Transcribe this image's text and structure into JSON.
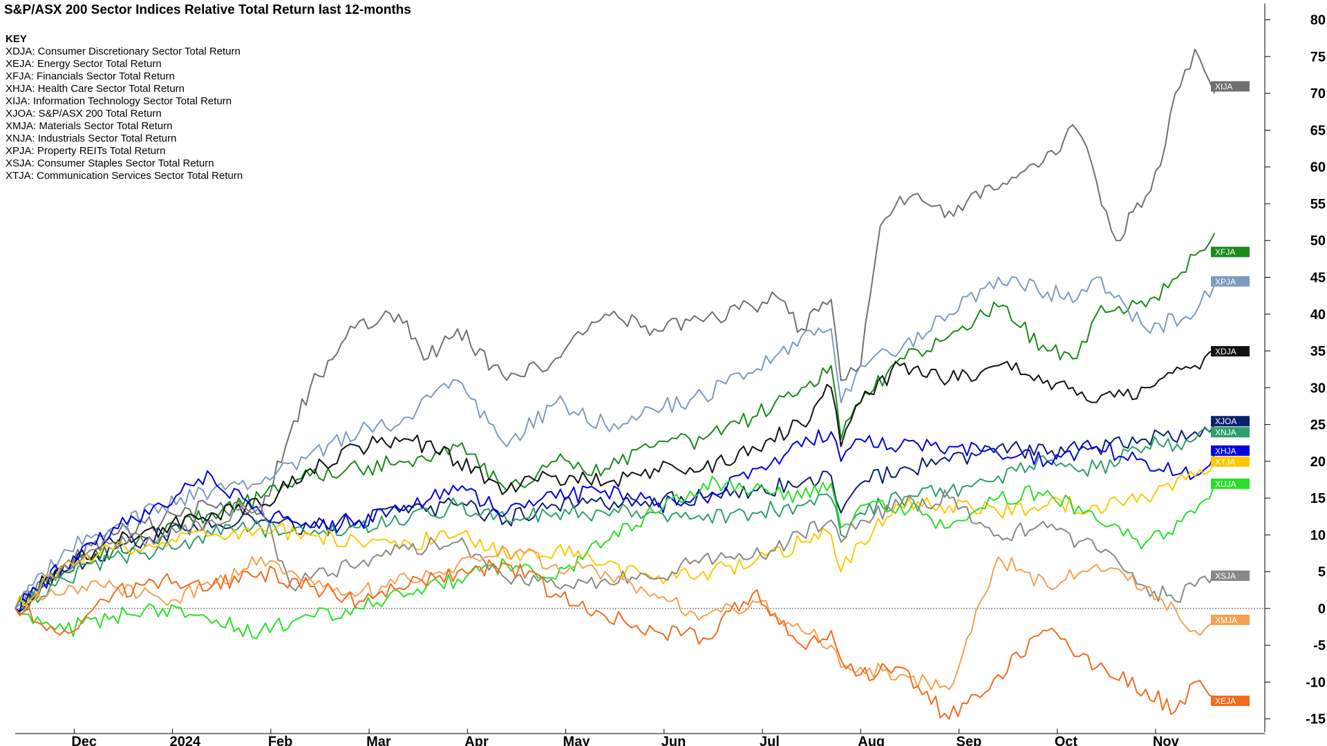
{
  "chart_data": {
    "type": "line",
    "title": "S&P/ASX 200 Sector Indices Relative Total Return last 12-months",
    "key_heading": "KEY",
    "key": [
      "XDJA: Consumer Discretionary Sector Total Return",
      "XEJA: Energy Sector Total Return",
      "XFJA: Financials Sector Total Return",
      "XHJA: Health Care Sector Total Return",
      "XIJA: Information Technology Sector Total Return",
      "XJOA: S&P/ASX 200 Total Return",
      "XMJA: Materials Sector Total Return",
      "XNJA: Industrials Sector Total Return",
      "XPJA: Property REITs Total Return",
      "XSJA: Consumer Staples Sector Total Return",
      "XTJA: Communication Services Sector Total Return"
    ],
    "x_ticks": [
      "Dec",
      "2024",
      "Feb",
      "Mar",
      "Apr",
      "May",
      "Jun",
      "Jul",
      "Aug",
      "Sep",
      "Oct",
      "Nov"
    ],
    "x_tick_pos": [
      0.6,
      1.6,
      2.6,
      3.6,
      4.6,
      5.6,
      6.6,
      7.6,
      8.6,
      9.6,
      10.6,
      11.6
    ],
    "y_ticks": [
      80,
      75,
      70,
      65,
      60,
      55,
      50,
      45,
      40,
      35,
      30,
      25,
      20,
      15,
      10,
      5,
      0,
      -5,
      -10,
      -15
    ],
    "ylim": [
      -17,
      81
    ],
    "xlim": [
      0,
      12.5
    ],
    "zero_line": true,
    "series": [
      {
        "name": "XIJA",
        "color": "#707070",
        "x": [
          0,
          0.5,
          1,
          1.5,
          2,
          2.5,
          2.75,
          3,
          3.5,
          3.9,
          4.2,
          4.5,
          5,
          5.5,
          6,
          6.5,
          7,
          7.5,
          7.7,
          8,
          8.3,
          8.4,
          8.6,
          8.8,
          9,
          9.5,
          10,
          10.5,
          10.8,
          11,
          11.2,
          11.5,
          11.7,
          11.8,
          12,
          12.1,
          12.2
        ],
        "y": [
          0,
          6,
          10,
          12,
          14,
          13,
          22,
          30,
          39,
          40,
          34,
          38,
          31,
          34,
          40,
          38,
          39,
          41,
          43,
          38,
          42,
          31,
          33,
          52,
          56,
          54,
          57,
          62,
          65,
          58,
          50,
          56,
          63,
          70,
          76,
          73,
          70
        ]
      },
      {
        "name": "XFJA",
        "color": "#1a8a1a",
        "x": [
          0,
          0.5,
          1,
          1.5,
          2,
          2.5,
          3,
          3.5,
          4,
          4.5,
          5,
          5.5,
          6,
          6.5,
          7,
          7.5,
          8,
          8.3,
          8.4,
          8.6,
          9,
          9.5,
          10,
          10.5,
          10.8,
          11,
          11.5,
          12,
          12.2
        ],
        "y": [
          0,
          5,
          8,
          10,
          13,
          15,
          18,
          19,
          20,
          22,
          16,
          20,
          19,
          22,
          23,
          26,
          30,
          33,
          23,
          28,
          34,
          37,
          41,
          35,
          34,
          40,
          41,
          48,
          51
        ]
      },
      {
        "name": "XPJA",
        "color": "#7b9bc0",
        "x": [
          0,
          0.5,
          1,
          1.5,
          2,
          2.5,
          3,
          3.5,
          4,
          4.5,
          5,
          5.5,
          6,
          6.5,
          7,
          7.5,
          8,
          8.3,
          8.4,
          8.6,
          9,
          9.5,
          10,
          10.5,
          10.8,
          11,
          11.5,
          12,
          12.2
        ],
        "y": [
          0,
          8,
          11,
          14,
          16,
          17,
          21,
          24,
          26,
          31,
          22,
          28,
          25,
          27,
          29,
          32,
          37,
          38,
          28,
          33,
          35,
          40,
          45,
          43,
          42,
          45,
          38,
          40,
          44
        ]
      },
      {
        "name": "XDJA",
        "color": "#111111",
        "x": [
          0,
          0.5,
          1,
          1.5,
          2,
          2.5,
          3,
          3.5,
          4,
          4.5,
          5,
          5.5,
          6,
          6.5,
          7,
          7.5,
          8,
          8.3,
          8.4,
          8.6,
          9,
          9.5,
          10,
          10.5,
          10.8,
          11,
          11.5,
          12,
          12.2
        ],
        "y": [
          0,
          6,
          9,
          11,
          13,
          14,
          19,
          22,
          23,
          20,
          16,
          18,
          17,
          19,
          19,
          22,
          25,
          30,
          22,
          28,
          33,
          31,
          33,
          31,
          29,
          28,
          30,
          33,
          35
        ]
      },
      {
        "name": "XJOA",
        "color": "#0a1f6e",
        "x": [
          0,
          0.5,
          1,
          1.5,
          2,
          2.5,
          3,
          3.5,
          4,
          4.5,
          5,
          5.5,
          6,
          6.5,
          7,
          7.5,
          8,
          8.3,
          8.4,
          8.6,
          9,
          9.5,
          10,
          10.5,
          11,
          11.5,
          12,
          12.2
        ],
        "y": [
          0,
          5,
          8,
          10,
          11,
          12,
          11,
          12,
          13,
          14,
          12,
          14,
          14,
          15,
          15,
          16,
          17,
          18,
          13,
          17,
          19,
          20,
          22,
          21,
          22,
          23,
          24,
          25
        ]
      },
      {
        "name": "XNJA",
        "color": "#2e9e6a",
        "x": [
          0,
          0.5,
          1,
          1.5,
          2,
          2.5,
          3,
          3.5,
          4,
          4.5,
          5,
          5.5,
          6,
          6.5,
          7,
          7.5,
          8,
          8.3,
          8.4,
          8.6,
          9,
          9.5,
          10,
          10.5,
          11,
          11.5,
          12,
          12.2
        ],
        "y": [
          0,
          4,
          7,
          8,
          10,
          11,
          10,
          11,
          12,
          14,
          12,
          13,
          13,
          13,
          12,
          13,
          14,
          15,
          10,
          13,
          15,
          16,
          18,
          20,
          19,
          22,
          23,
          24
        ]
      },
      {
        "name": "XHJA",
        "color": "#0000e0",
        "x": [
          0,
          0.5,
          1,
          1.5,
          2,
          2.5,
          3,
          3.5,
          4,
          4.5,
          5,
          5.5,
          6,
          6.5,
          7,
          7.5,
          8,
          8.3,
          8.4,
          8.6,
          9,
          9.5,
          10,
          10.5,
          11,
          11.5,
          12,
          12.2
        ],
        "y": [
          0,
          6,
          11,
          14,
          18,
          13,
          11,
          12,
          14,
          16,
          13,
          15,
          16,
          14,
          15,
          19,
          22,
          24,
          20,
          23,
          22,
          22,
          21,
          20,
          22,
          20,
          18,
          21
        ]
      },
      {
        "name": "XTJA",
        "color": "#ffc800",
        "x": [
          0,
          0.5,
          1,
          1.5,
          2,
          2.5,
          3,
          3.5,
          4,
          4.5,
          5,
          5.5,
          6,
          6.5,
          7,
          7.5,
          8,
          8.3,
          8.4,
          8.6,
          9,
          9.5,
          10,
          10.5,
          11,
          11.5,
          12,
          12.2
        ],
        "y": [
          0,
          6,
          8,
          9,
          10,
          11,
          10,
          9,
          9,
          10,
          7,
          8,
          6,
          4,
          5,
          6,
          9,
          10,
          5,
          9,
          14,
          14,
          13,
          14,
          14,
          15,
          18,
          20
        ]
      },
      {
        "name": "XUJA",
        "color": "#28e028",
        "x": [
          0,
          0.5,
          1,
          1.5,
          2,
          2.5,
          3,
          3.5,
          4,
          4.5,
          5,
          5.5,
          6,
          6.5,
          7,
          7.5,
          8,
          8.3,
          8.4,
          8.6,
          9,
          9.5,
          10,
          10.5,
          11,
          11.5,
          12,
          12.2
        ],
        "y": [
          0,
          -3,
          -1,
          0,
          -2,
          -3,
          -1,
          0,
          2,
          4,
          6,
          4,
          9,
          13,
          17,
          16,
          15,
          17,
          11,
          14,
          14,
          11,
          15,
          16,
          12,
          9,
          13,
          17
        ]
      },
      {
        "name": "XSJA",
        "color": "#888888",
        "x": [
          0,
          0.5,
          1,
          1.5,
          2,
          2.5,
          2.8,
          3,
          3.5,
          4,
          4.5,
          5,
          5.5,
          6,
          6.5,
          7,
          7.5,
          8,
          8.3,
          8.4,
          8.6,
          9,
          9.5,
          10,
          10.5,
          11,
          11.5,
          11.8,
          12,
          12.2
        ],
        "y": [
          0,
          6,
          9,
          10,
          12,
          14,
          3,
          4,
          6,
          8,
          9,
          4,
          3,
          4,
          4,
          7,
          7,
          10,
          12,
          9,
          12,
          14,
          15,
          10,
          11,
          8,
          3,
          1,
          3,
          5
        ]
      },
      {
        "name": "XMJA",
        "color": "#f5a050",
        "x": [
          0,
          0.5,
          1,
          1.5,
          2,
          2.5,
          3,
          3.5,
          4,
          4.5,
          5,
          5.5,
          6,
          6.5,
          7,
          7.5,
          8,
          8.3,
          8.4,
          8.6,
          9,
          9.5,
          10,
          10.5,
          11,
          11.5,
          11.8,
          12,
          12.2
        ],
        "y": [
          0,
          2,
          3,
          1,
          3,
          7,
          4,
          2,
          4,
          6,
          8,
          6,
          5,
          2,
          -1,
          1,
          -3,
          -5,
          -8,
          -8,
          -9,
          -11,
          7,
          3,
          6,
          3,
          0,
          -3,
          -2
        ]
      },
      {
        "name": "XEJA",
        "color": "#f26b1e",
        "x": [
          0,
          0.5,
          1,
          1.5,
          2,
          2.5,
          3,
          3.5,
          4,
          4.5,
          5,
          5.5,
          6,
          6.5,
          7,
          7.5,
          8,
          8.3,
          8.4,
          8.6,
          9,
          9.5,
          10,
          10.5,
          11,
          11.5,
          11.8,
          12,
          12.2
        ],
        "y": [
          0,
          -3,
          2,
          4,
          3,
          5,
          3,
          1,
          3,
          5,
          6,
          2,
          -1,
          -3,
          -4,
          2,
          -5,
          -3,
          -7,
          -9,
          -8,
          -15,
          -9,
          -3,
          -8,
          -11,
          -14,
          -10,
          -12
        ]
      }
    ],
    "end_labels": [
      {
        "text": "XIJA",
        "value": 71,
        "color": "#707070"
      },
      {
        "text": "XFJA",
        "value": 48.5,
        "color": "#1a8a1a"
      },
      {
        "text": "XPJA",
        "value": 44.5,
        "color": "#7b9bc0"
      },
      {
        "text": "XDJA",
        "value": 35,
        "color": "#111111"
      },
      {
        "text": "XJOA",
        "value": 25.5,
        "color": "#0a1f6e"
      },
      {
        "text": "XNJA",
        "value": 24,
        "color": "#2e9e6a"
      },
      {
        "text": "XHJA",
        "value": 21.5,
        "color": "#0000e0"
      },
      {
        "text": "XTJA",
        "value": 20,
        "color": "#ffc800"
      },
      {
        "text": "XUJA",
        "value": 17,
        "color": "#28e028"
      },
      {
        "text": "XSJA",
        "value": 4.5,
        "color": "#888888"
      },
      {
        "text": "XMJA",
        "value": -1.5,
        "color": "#f5a050"
      },
      {
        "text": "XEJA",
        "value": -12.5,
        "color": "#f26b1e"
      }
    ]
  }
}
